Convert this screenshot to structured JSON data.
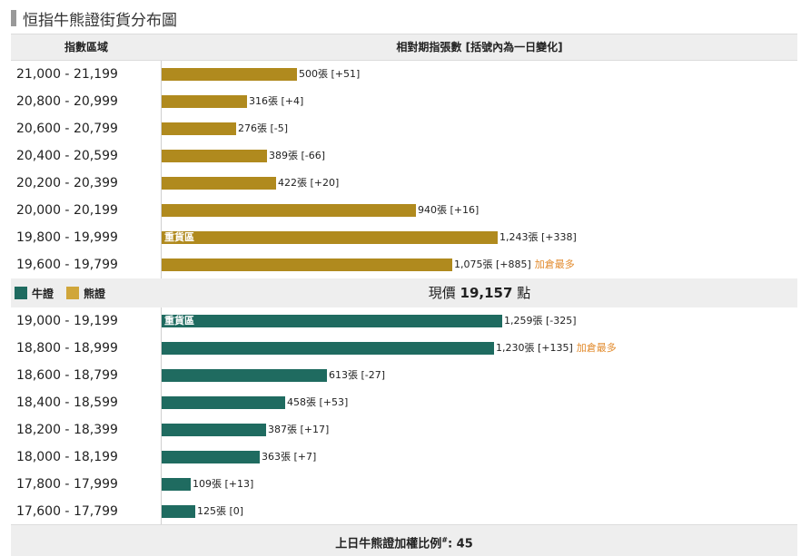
{
  "page_title": "恒指牛熊證街貨分布圖",
  "header": {
    "range": "指數區域",
    "bars": "相對期指張數 [括號內為一日變化]"
  },
  "legend": {
    "bull": "牛證",
    "bear": "熊證"
  },
  "price": {
    "prefix": "現價",
    "value": "19,157",
    "suffix": "點"
  },
  "footer": {
    "label": "上日牛熊證加權比例",
    "sup": "#",
    "value": ": 45"
  },
  "tags": {
    "heavy": "重貨區",
    "most": "加倉最多"
  },
  "colors": {
    "bull": "#1f6b60",
    "bear": "#b08a1e",
    "most": "#e28a2b"
  },
  "chart_data": {
    "type": "bar",
    "orientation": "horizontal",
    "unit": "張",
    "bear_rows": [
      {
        "range": "21,000 - 21,199",
        "value": 500,
        "display": "500",
        "change": "+51"
      },
      {
        "range": "20,800 - 20,999",
        "value": 316,
        "display": "316",
        "change": "+4"
      },
      {
        "range": "20,600 - 20,799",
        "value": 276,
        "display": "276",
        "change": "-5"
      },
      {
        "range": "20,400 - 20,599",
        "value": 389,
        "display": "389",
        "change": "-66"
      },
      {
        "range": "20,200 - 20,399",
        "value": 422,
        "display": "422",
        "change": "+20"
      },
      {
        "range": "20,000 - 20,199",
        "value": 940,
        "display": "940",
        "change": "+16"
      },
      {
        "range": "19,800 - 19,999",
        "value": 1243,
        "display": "1,243",
        "change": "+338",
        "heavy": true
      },
      {
        "range": "19,600 - 19,799",
        "value": 1075,
        "display": "1,075",
        "change": "+885",
        "most": true
      }
    ],
    "bull_rows": [
      {
        "range": "19,000 - 19,199",
        "value": 1259,
        "display": "1,259",
        "change": "-325",
        "heavy": true
      },
      {
        "range": "18,800 - 18,999",
        "value": 1230,
        "display": "1,230",
        "change": "+135",
        "most": true
      },
      {
        "range": "18,600 - 18,799",
        "value": 613,
        "display": "613",
        "change": "-27"
      },
      {
        "range": "18,400 - 18,599",
        "value": 458,
        "display": "458",
        "change": "+53"
      },
      {
        "range": "18,200 - 18,399",
        "value": 387,
        "display": "387",
        "change": "+17"
      },
      {
        "range": "18,000 - 18,199",
        "value": 363,
        "display": "363",
        "change": "+7"
      },
      {
        "range": "17,800 - 17,999",
        "value": 109,
        "display": "109",
        "change": "+13"
      },
      {
        "range": "17,600 - 17,799",
        "value": 125,
        "display": "125",
        "change": "0"
      }
    ]
  }
}
